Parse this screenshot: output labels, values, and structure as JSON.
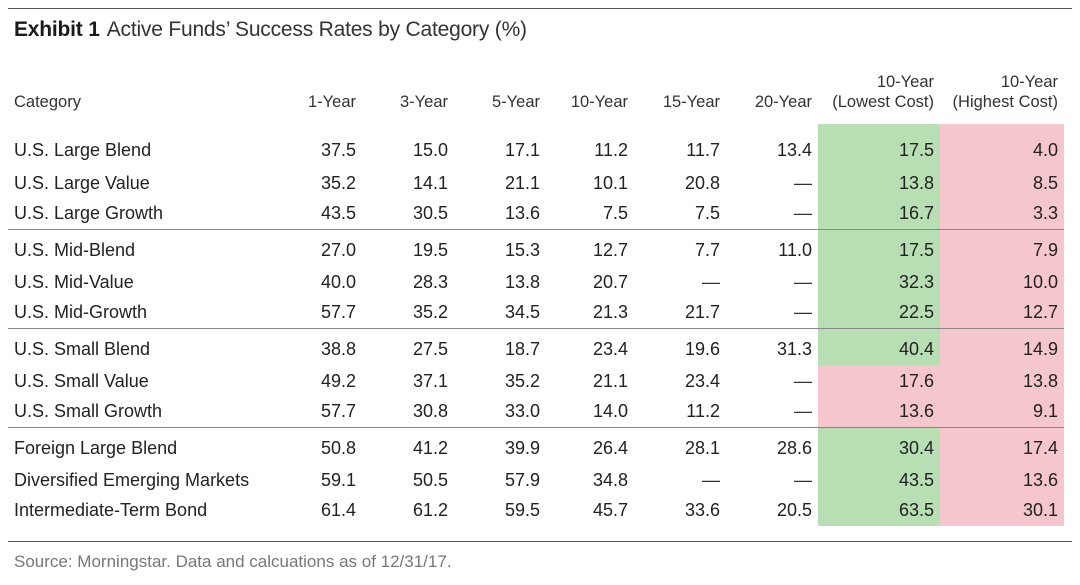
{
  "exhibit": {
    "label": "Exhibit 1",
    "title": "Active Funds’ Success Rates by Category (%)"
  },
  "table": {
    "headers": [
      "Category",
      "1-Year",
      "3-Year",
      "5-Year",
      "10-Year",
      "15-Year",
      "20-Year",
      "10-Year (Lowest Cost)",
      "10-Year (Highest Cost)"
    ],
    "header_lines": {
      "lowest": [
        "10-Year",
        "(Lowest Cost)"
      ],
      "highest": [
        "10-Year",
        "(Highest Cost)"
      ]
    },
    "highlight_colors": {
      "green": "#b8dfb3",
      "red": "#f5c6cb"
    },
    "rows": [
      {
        "category": "U.S. Large Blend",
        "values": [
          "37.5",
          "15.0",
          "17.1",
          "11.2",
          "11.7",
          "13.4",
          "17.5",
          "4.0"
        ],
        "low_color": "green"
      },
      {
        "category": "U.S. Large Value",
        "values": [
          "35.2",
          "14.1",
          "21.1",
          "10.1",
          "20.8",
          "—",
          "13.8",
          "8.5"
        ],
        "low_color": "green"
      },
      {
        "category": "U.S. Large Growth",
        "values": [
          "43.5",
          "30.5",
          "13.6",
          "7.5",
          "7.5",
          "—",
          "16.7",
          "3.3"
        ],
        "low_color": "green"
      },
      {
        "category": "U.S. Mid-Blend",
        "values": [
          "27.0",
          "19.5",
          "15.3",
          "12.7",
          "7.7",
          "11.0",
          "17.5",
          "7.9"
        ],
        "low_color": "green"
      },
      {
        "category": "U.S. Mid-Value",
        "values": [
          "40.0",
          "28.3",
          "13.8",
          "20.7",
          "—",
          "—",
          "32.3",
          "10.0"
        ],
        "low_color": "green"
      },
      {
        "category": "U.S. Mid-Growth",
        "values": [
          "57.7",
          "35.2",
          "34.5",
          "21.3",
          "21.7",
          "—",
          "22.5",
          "12.7"
        ],
        "low_color": "green"
      },
      {
        "category": "U.S. Small Blend",
        "values": [
          "38.8",
          "27.5",
          "18.7",
          "23.4",
          "19.6",
          "31.3",
          "40.4",
          "14.9"
        ],
        "low_color": "green"
      },
      {
        "category": "U.S. Small Value",
        "values": [
          "49.2",
          "37.1",
          "35.2",
          "21.1",
          "23.4",
          "—",
          "17.6",
          "13.8"
        ],
        "low_color": "red"
      },
      {
        "category": "U.S. Small Growth",
        "values": [
          "57.7",
          "30.8",
          "33.0",
          "14.0",
          "11.2",
          "—",
          "13.6",
          "9.1"
        ],
        "low_color": "red"
      },
      {
        "category": "Foreign Large Blend",
        "values": [
          "50.8",
          "41.2",
          "39.9",
          "26.4",
          "28.1",
          "28.6",
          "30.4",
          "17.4"
        ],
        "low_color": "green"
      },
      {
        "category": "Diversified Emerging Markets",
        "values": [
          "59.1",
          "50.5",
          "57.9",
          "34.8",
          "—",
          "—",
          "43.5",
          "13.6"
        ],
        "low_color": "green"
      },
      {
        "category": "Intermediate-Term Bond",
        "values": [
          "61.4",
          "61.2",
          "59.5",
          "45.7",
          "33.6",
          "20.5",
          "63.5",
          "30.1"
        ],
        "low_color": "green"
      }
    ],
    "group_starts": [
      0,
      3,
      6,
      9
    ]
  },
  "source": "Source: Morningstar. Data and calcuations as of  12/31/17."
}
